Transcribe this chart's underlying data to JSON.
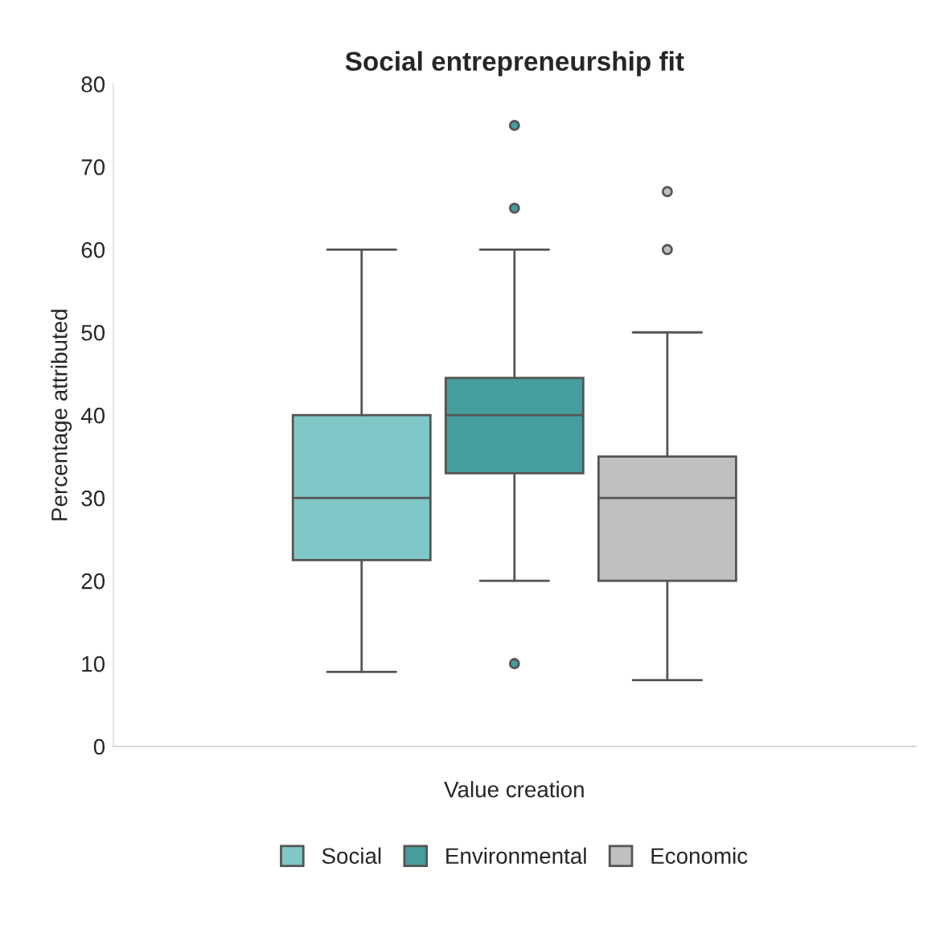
{
  "chart_data": {
    "type": "box",
    "title": "Social entrepreneurship fit",
    "xlabel": "Value creation",
    "ylabel": "Percentage attributed",
    "categories": [
      null
    ],
    "series": [
      {
        "name": "Social",
        "color": "#80c8c8",
        "boxes": [
          {
            "low": 9,
            "q1": 22.5,
            "median": 30,
            "q3": 40,
            "high": 60
          }
        ]
      },
      {
        "name": "Environmental",
        "color": "#469d9d",
        "boxes": [
          {
            "low": 20,
            "q1": 33,
            "median": 40,
            "q3": 44.5,
            "high": 60,
            "outliers": [
              75,
              65,
              10
            ]
          }
        ]
      },
      {
        "name": "Economic",
        "color": "#c0c0c0",
        "boxes": [
          {
            "low": 8,
            "q1": 20,
            "median": 30,
            "q3": 35,
            "high": 50,
            "outliers": [
              67,
              60
            ]
          }
        ]
      }
    ],
    "ylim": [
      0,
      80
    ],
    "yticks": [
      0,
      10,
      20,
      30,
      40,
      50,
      60,
      70,
      80
    ],
    "grid": false,
    "legend": "bottom"
  }
}
